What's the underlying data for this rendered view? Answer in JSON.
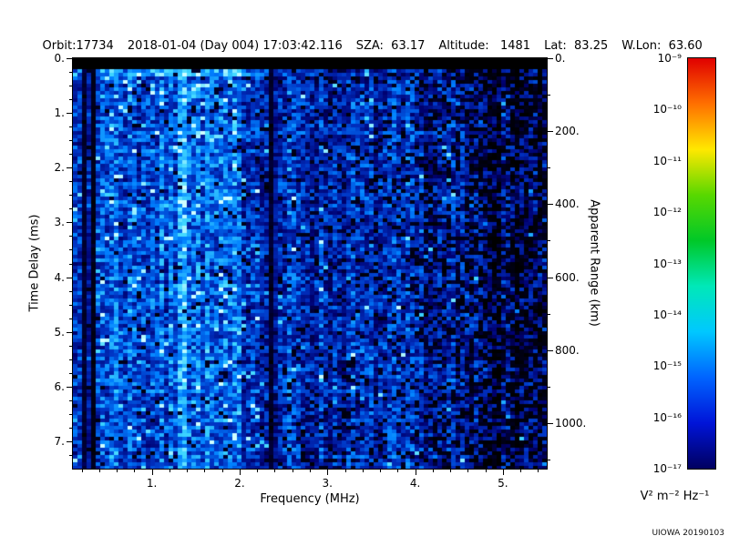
{
  "header": {
    "fields": [
      "Orbit:17734",
      "2018-01-04 (Day 004) 17:03:42.116",
      "SZA:  63.17",
      "Altitude:   1481",
      "Lat:  83.25",
      "W.Lon:  63.60"
    ]
  },
  "chart_data": {
    "type": "heatmap",
    "title": "",
    "xlabel": "Frequency (MHz)",
    "ylabel": "Time Delay (ms)",
    "y2label": "Apparent Range (km)",
    "xlim_mhz": [
      0.1,
      5.5
    ],
    "ylim_ms": [
      0,
      7.5
    ],
    "y2lim_km": [
      0,
      1125
    ],
    "range_per_ms_km": 150,
    "x_ticks": [
      {
        "v": 1,
        "label": "1."
      },
      {
        "v": 2,
        "label": "2."
      },
      {
        "v": 3,
        "label": "3."
      },
      {
        "v": 4,
        "label": "4."
      },
      {
        "v": 5,
        "label": "5."
      }
    ],
    "x_minor_step": 0.2,
    "y_ticks": [
      {
        "v": 0,
        "label": "0."
      },
      {
        "v": 1,
        "label": "1."
      },
      {
        "v": 2,
        "label": "2."
      },
      {
        "v": 3,
        "label": "3."
      },
      {
        "v": 4,
        "label": "4."
      },
      {
        "v": 5,
        "label": "5."
      },
      {
        "v": 6,
        "label": "6."
      },
      {
        "v": 7,
        "label": "7."
      }
    ],
    "y_minor_step": 0.25,
    "y2_ticks": [
      {
        "v": 0,
        "label": "0."
      },
      {
        "v": 200,
        "label": "200."
      },
      {
        "v": 400,
        "label": "400."
      },
      {
        "v": 600,
        "label": "600."
      },
      {
        "v": 800,
        "label": "800."
      },
      {
        "v": 1000,
        "label": "1000."
      }
    ],
    "y2_minor_step": 100,
    "colorbar": {
      "scale": "log",
      "max_label": "10⁻⁹",
      "min_label": "10⁻¹⁷",
      "tick_labels": [
        "10⁻⁹",
        "10⁻¹⁰",
        "10⁻¹¹",
        "10⁻¹²",
        "10⁻¹³",
        "10⁻¹⁴",
        "10⁻¹⁵",
        "10⁻¹⁶",
        "10⁻¹⁷"
      ],
      "units": "V² m⁻² Hz⁻¹",
      "gradient_top_to_bottom": [
        "#e00000",
        "#ff7000",
        "#ffe800",
        "#58d800",
        "#00c828",
        "#00e8b8",
        "#00c8ff",
        "#0064ff",
        "#0014d8",
        "#000060"
      ]
    },
    "spectrogram": {
      "description": "Broadband blue/cyan receiver noise, brighter below 2.4 MHz, fading to black-speckled dark blue toward 5.5 MHz; black band at zero delay; bright vertical emission line near 1.35 MHz; dark absorption lines near 0.24, 0.33 and 2.37 MHz",
      "seed": 7,
      "top_black_band_ms": 0.18,
      "bright_lines_mhz": [
        1.35
      ],
      "dark_lines_mhz": [
        0.24,
        0.33,
        2.37
      ],
      "base_profile": [
        [
          0.1,
          0.52
        ],
        [
          0.6,
          0.5
        ],
        [
          1.2,
          0.47
        ],
        [
          1.45,
          0.52
        ],
        [
          2.3,
          0.44
        ],
        [
          2.5,
          0.38
        ],
        [
          4.0,
          0.33
        ],
        [
          5.5,
          0.17
        ]
      ],
      "blackout_profile": [
        [
          0.1,
          0.03
        ],
        [
          2.4,
          0.06
        ],
        [
          4.0,
          0.16
        ],
        [
          5.5,
          0.45
        ]
      ],
      "palette": [
        [
          0,
          "#000000"
        ],
        [
          0.18,
          "#000070"
        ],
        [
          0.4,
          "#0030c0"
        ],
        [
          0.6,
          "#0080ff"
        ],
        [
          0.8,
          "#40d8ff"
        ],
        [
          1,
          "#d0ffff"
        ]
      ]
    }
  },
  "footer": {
    "watermark": "UIOWA 20190103"
  }
}
